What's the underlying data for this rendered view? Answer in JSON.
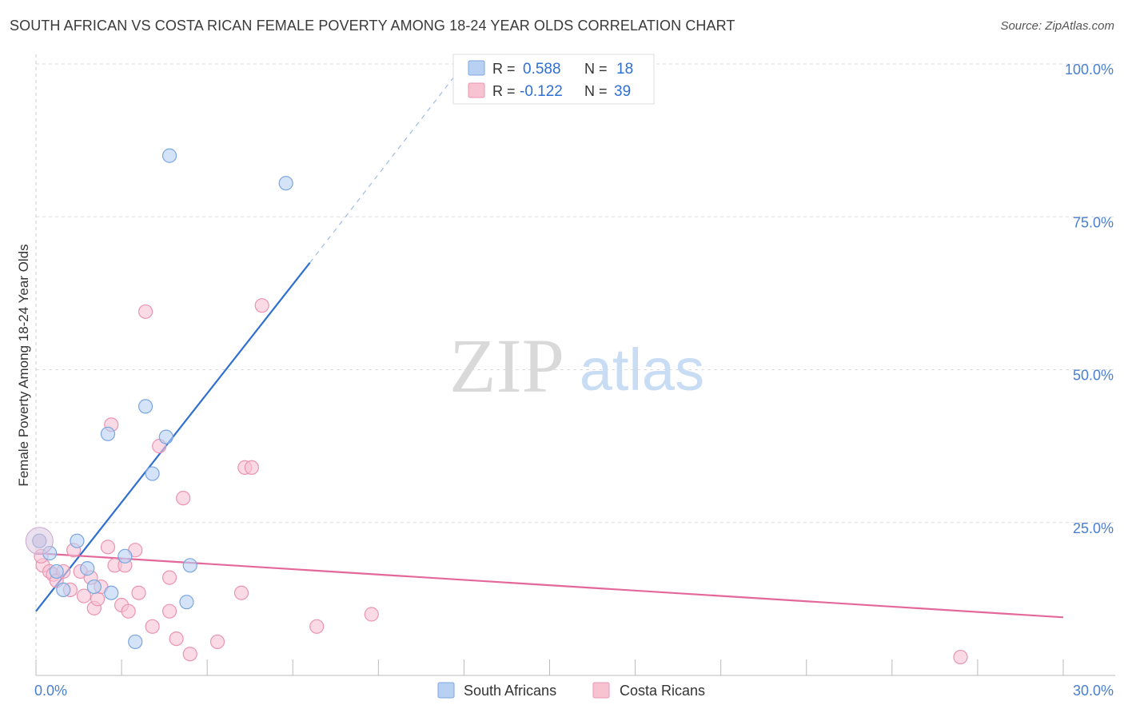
{
  "header": {
    "title": "SOUTH AFRICAN VS COSTA RICAN FEMALE POVERTY AMONG 18-24 YEAR OLDS CORRELATION CHART",
    "source": "Source: ZipAtlas.com"
  },
  "watermark": {
    "zip": "ZIP",
    "atlas": "atlas"
  },
  "colors": {
    "blue_fill": "#b8d1f3",
    "blue_stroke": "#7aa6df",
    "blue_line": "#2f6fd1",
    "pink_fill": "#f7c3d3",
    "pink_stroke": "#eb94b0",
    "pink_line": "#e4679a",
    "tick_label": "#4a7fcf",
    "grid": "#dddddd"
  },
  "legend_top": {
    "rows": [
      {
        "r_label": "R =",
        "r_value": "0.588",
        "n_label": "N =",
        "n_value": "18"
      },
      {
        "r_label": "R =",
        "r_value": "-0.122",
        "n_label": "N =",
        "n_value": "39"
      }
    ]
  },
  "legend_bottom": {
    "items": [
      "South Africans",
      "Costa Ricans"
    ]
  },
  "chart_data": {
    "type": "scatter",
    "xlabel": "",
    "ylabel": "Female Poverty Among 18-24 Year Olds",
    "xlim": [
      0,
      30
    ],
    "ylim": [
      0,
      100
    ],
    "x_ticks": [
      "0.0%",
      "30.0%"
    ],
    "y_ticks": [
      {
        "value": 100,
        "label": "100.0%"
      },
      {
        "value": 75,
        "label": "75.0%"
      },
      {
        "value": 50,
        "label": "50.0%"
      },
      {
        "value": 25,
        "label": "25.0%"
      }
    ],
    "grid": true,
    "legend_position": "bottom",
    "series": [
      {
        "name": "South Africans",
        "points": [
          [
            0.1,
            22.0
          ],
          [
            0.4,
            20.0
          ],
          [
            0.6,
            17.0
          ],
          [
            0.8,
            14.0
          ],
          [
            1.2,
            22.0
          ],
          [
            1.5,
            17.5
          ],
          [
            1.7,
            14.5
          ],
          [
            2.1,
            39.5
          ],
          [
            2.2,
            13.5
          ],
          [
            2.6,
            19.5
          ],
          [
            2.9,
            5.5
          ],
          [
            3.2,
            44.0
          ],
          [
            3.4,
            33.0
          ],
          [
            3.8,
            39.0
          ],
          [
            3.9,
            85.0
          ],
          [
            4.4,
            12.0
          ],
          [
            4.5,
            18.0
          ],
          [
            7.3,
            80.5
          ]
        ],
        "trend": {
          "x_start": 0,
          "y_start": 10.5,
          "x_solid_end": 8,
          "y_solid_end": 67.5,
          "x_dash_end": 12.5,
          "y_dash_end": 100
        }
      },
      {
        "name": "Costa Ricans",
        "points": [
          [
            0.2,
            18.0
          ],
          [
            0.4,
            17.0
          ],
          [
            0.5,
            16.5
          ],
          [
            0.6,
            15.5
          ],
          [
            0.8,
            17.0
          ],
          [
            1.0,
            14.0
          ],
          [
            1.1,
            20.5
          ],
          [
            1.3,
            17.0
          ],
          [
            1.4,
            13.0
          ],
          [
            1.6,
            16.0
          ],
          [
            1.7,
            11.0
          ],
          [
            1.8,
            12.5
          ],
          [
            1.9,
            14.5
          ],
          [
            2.1,
            21.0
          ],
          [
            2.2,
            41.0
          ],
          [
            2.3,
            18.0
          ],
          [
            2.5,
            11.5
          ],
          [
            2.6,
            18.0
          ],
          [
            2.7,
            10.5
          ],
          [
            2.9,
            20.5
          ],
          [
            3.0,
            13.5
          ],
          [
            3.2,
            59.5
          ],
          [
            3.4,
            8.0
          ],
          [
            3.6,
            37.5
          ],
          [
            3.9,
            10.5
          ],
          [
            3.9,
            16.0
          ],
          [
            4.1,
            6.0
          ],
          [
            4.3,
            29.0
          ],
          [
            4.5,
            3.5
          ],
          [
            5.3,
            5.5
          ],
          [
            6.0,
            13.5
          ],
          [
            6.1,
            34.0
          ],
          [
            6.3,
            34.0
          ],
          [
            6.6,
            60.5
          ],
          [
            8.2,
            8.0
          ],
          [
            9.8,
            10.0
          ],
          [
            27.0,
            3.0
          ],
          [
            0.1,
            22.0
          ],
          [
            0.15,
            19.5
          ]
        ],
        "trend": {
          "x_start": 0,
          "y_start": 20.0,
          "x_end": 30,
          "y_end": 9.5
        }
      }
    ]
  }
}
